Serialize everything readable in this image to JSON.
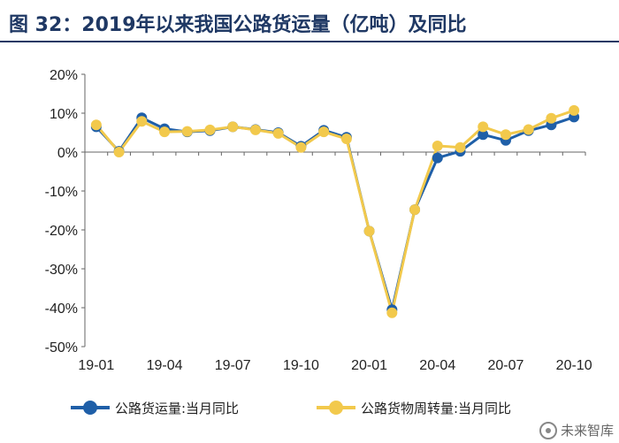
{
  "title": "图 32：2019年以来我国公路货运量（亿吨）及同比",
  "colors": {
    "series_blue": "#1f5fa8",
    "series_yellow": "#f2c94c",
    "title": "#1f3864"
  },
  "watermark": "未来智库",
  "chart_data": {
    "type": "line",
    "x": [
      "19-01",
      "19-02",
      "19-03",
      "19-04",
      "19-05",
      "19-06",
      "19-07",
      "19-08",
      "19-09",
      "19-10",
      "19-11",
      "19-12",
      "20-01",
      "20-02",
      "20-03",
      "20-04",
      "20-05",
      "20-06",
      "20-07",
      "20-08",
      "20-09",
      "20-10"
    ],
    "x_tick_labels": [
      "19-01",
      "19-04",
      "19-07",
      "19-10",
      "20-01",
      "20-04",
      "20-07",
      "20-10"
    ],
    "y_tick_labels": [
      "20%",
      "10%",
      "0%",
      "-10%",
      "-20%",
      "-30%",
      "-40%",
      "-50%"
    ],
    "ylim": [
      -50,
      20
    ],
    "y_unit": "%",
    "legend_position": "bottom",
    "grid": false,
    "series": [
      {
        "name": "公路货运量:当月同比",
        "color": "#1f5fa8",
        "values": [
          6.5,
          0.2,
          8.8,
          6.0,
          5.2,
          5.5,
          6.5,
          5.8,
          5.0,
          1.5,
          5.6,
          3.8,
          -20.3,
          -40.5,
          -14.8,
          -1.5,
          0.2,
          4.5,
          3.0,
          5.5,
          7.0,
          9.0
        ]
      },
      {
        "name": "公路货物周转量:当月同比",
        "color": "#f2c94c",
        "values": [
          7.0,
          0.0,
          7.9,
          5.2,
          5.3,
          5.7,
          6.5,
          5.7,
          4.8,
          1.2,
          5.2,
          3.4,
          -20.3,
          -41.3,
          -14.8,
          1.6,
          1.2,
          6.5,
          4.5,
          5.8,
          8.7,
          10.7
        ]
      }
    ]
  }
}
